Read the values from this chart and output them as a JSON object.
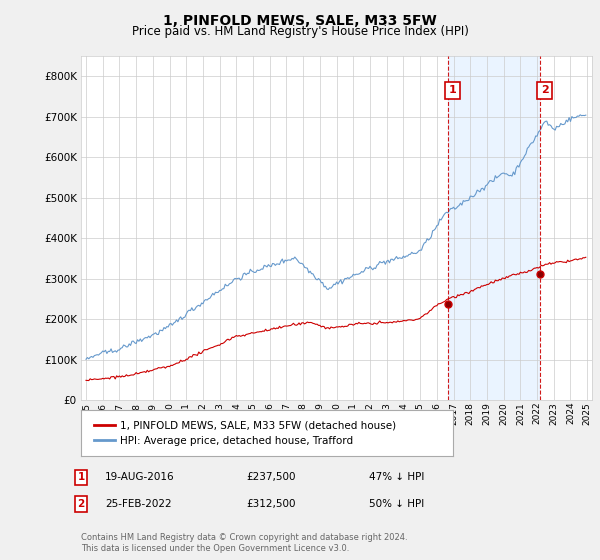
{
  "title": "1, PINFOLD MEWS, SALE, M33 5FW",
  "subtitle": "Price paid vs. HM Land Registry's House Price Index (HPI)",
  "footer": "Contains HM Land Registry data © Crown copyright and database right 2024.\nThis data is licensed under the Open Government Licence v3.0.",
  "legend_label_red": "1, PINFOLD MEWS, SALE, M33 5FW (detached house)",
  "legend_label_blue": "HPI: Average price, detached house, Trafford",
  "red_color": "#cc0000",
  "blue_color": "#6699cc",
  "blue_fill": "#ddeeff",
  "vline_color": "#cc0000",
  "marker1_x": 2016.64,
  "marker1_y": 237500,
  "marker2_x": 2022.15,
  "marker2_y": 312500,
  "annotation1": {
    "date": "19-AUG-2016",
    "price": "£237,500",
    "pct": "47% ↓ HPI"
  },
  "annotation2": {
    "date": "25-FEB-2022",
    "price": "£312,500",
    "pct": "50% ↓ HPI"
  },
  "ylim": [
    0,
    850000
  ],
  "xlim_start": 1994.7,
  "xlim_end": 2025.3,
  "background_color": "#f0f0f0",
  "plot_bg_color": "#ffffff",
  "grid_color": "#cccccc"
}
